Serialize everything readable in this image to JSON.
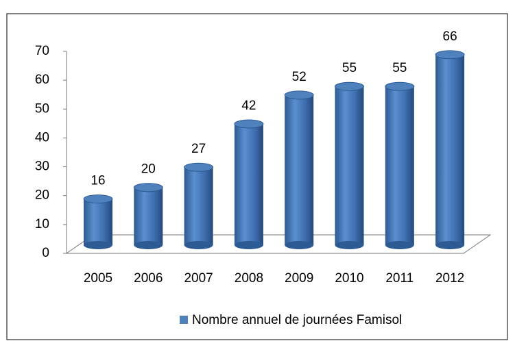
{
  "chart_data": {
    "type": "bar",
    "categories": [
      "2005",
      "2006",
      "2007",
      "2008",
      "2009",
      "2010",
      "2011",
      "2012"
    ],
    "series": [
      {
        "name": "Nombre annuel de journées Famisol",
        "color": "#4f81bd",
        "values": [
          16,
          20,
          27,
          42,
          52,
          55,
          55,
          66
        ]
      }
    ],
    "ylim": [
      0,
      70
    ],
    "yticks": [
      0,
      10,
      20,
      30,
      40,
      50,
      60,
      70
    ],
    "grid": false,
    "legend": "bottom"
  }
}
